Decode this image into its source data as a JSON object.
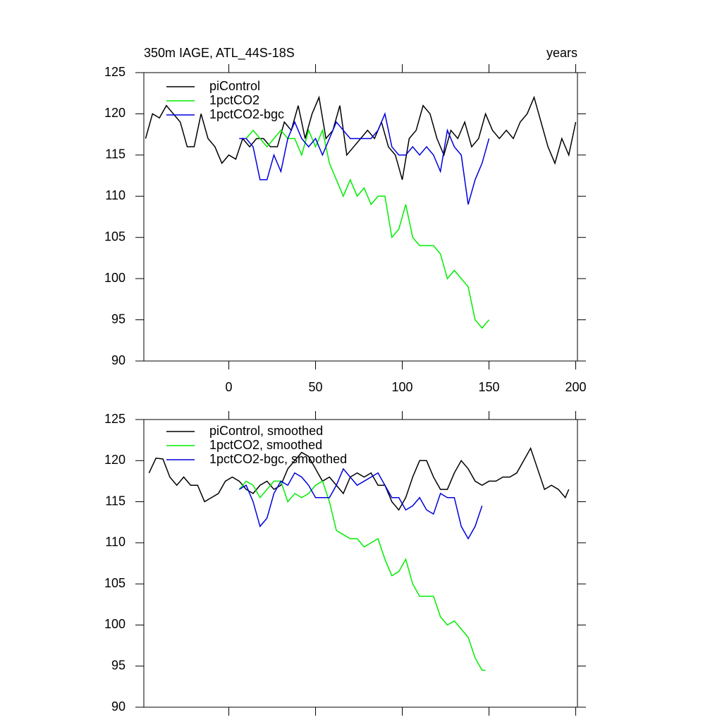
{
  "chart_data": [
    {
      "type": "line",
      "title": "350m IAGE, ATL_44S-18S",
      "subtitle": "years",
      "xlim": [
        -49,
        201
      ],
      "xticks": [
        0,
        50,
        100,
        150,
        200
      ],
      "ylim": [
        90,
        125
      ],
      "yticks": [
        90,
        95,
        100,
        105,
        110,
        115,
        120,
        125
      ],
      "series": [
        {
          "name": "piControl",
          "color": "#000000",
          "x": [
            -48,
            -44,
            -40,
            -36,
            -32,
            -28,
            -24,
            -20,
            -16,
            -12,
            -8,
            -4,
            0,
            4,
            8,
            12,
            16,
            20,
            24,
            28,
            32,
            36,
            40,
            44,
            48,
            52,
            56,
            60,
            64,
            68,
            72,
            76,
            80,
            84,
            88,
            92,
            96,
            100,
            104,
            108,
            112,
            116,
            120,
            124,
            128,
            132,
            136,
            140,
            144,
            148,
            152,
            156,
            160,
            164,
            168,
            172,
            176,
            180,
            184,
            188,
            192,
            196,
            200
          ],
          "values": [
            117,
            120,
            119.5,
            121,
            120,
            119,
            116,
            116,
            120,
            117,
            116,
            114,
            115,
            114.5,
            117,
            116,
            117,
            117,
            116,
            116,
            119,
            118,
            121,
            117,
            120,
            122,
            117,
            118,
            121,
            115,
            116,
            117,
            118,
            117,
            119,
            116,
            115,
            112,
            117,
            118,
            121,
            120,
            117,
            115,
            118,
            117,
            119,
            116,
            117,
            120,
            118,
            117,
            118,
            117,
            119,
            120,
            122,
            119,
            116,
            114,
            117,
            115,
            119
          ]
        },
        {
          "name": "1pctCO2",
          "color": "#00ee00",
          "x": [
            10,
            14,
            18,
            22,
            26,
            30,
            34,
            38,
            42,
            46,
            50,
            54,
            58,
            62,
            66,
            70,
            74,
            78,
            82,
            86,
            90,
            94,
            98,
            102,
            106,
            110,
            114,
            118,
            122,
            126,
            130,
            134,
            138,
            142,
            146,
            150
          ],
          "values": [
            117,
            118,
            117,
            116,
            117,
            118,
            117,
            117,
            115,
            118,
            116,
            118,
            114,
            112,
            110,
            112,
            110,
            111,
            109,
            110,
            110,
            105,
            106,
            109,
            105,
            104,
            104,
            104,
            103,
            100,
            101,
            100,
            99,
            95,
            94,
            95
          ]
        },
        {
          "name": "1pctCO2-bgc",
          "color": "#0000dd",
          "x": [
            6,
            10,
            14,
            18,
            22,
            26,
            30,
            34,
            38,
            42,
            46,
            50,
            54,
            58,
            62,
            66,
            70,
            74,
            78,
            82,
            86,
            90,
            94,
            98,
            102,
            106,
            110,
            114,
            118,
            122,
            126,
            130,
            134,
            138,
            142,
            146,
            150
          ],
          "values": [
            117,
            117,
            116,
            112,
            112,
            115,
            113,
            117,
            119,
            117,
            116,
            117,
            115,
            117,
            119,
            118,
            117,
            117,
            117,
            117,
            118,
            120,
            116,
            115,
            115,
            116,
            115,
            116,
            115,
            113,
            118,
            116,
            115,
            109,
            112,
            114,
            117
          ]
        }
      ]
    },
    {
      "type": "line",
      "xlim": [
        -49,
        201
      ],
      "xticks": [
        0,
        50,
        100,
        150,
        200
      ],
      "ylim": [
        90,
        125
      ],
      "yticks": [
        90,
        95,
        100,
        105,
        110,
        115,
        120,
        125
      ],
      "series": [
        {
          "name": "piControl, smoothed",
          "color": "#000000",
          "x": [
            -46,
            -42,
            -38,
            -34,
            -30,
            -26,
            -22,
            -18,
            -14,
            -10,
            -6,
            -2,
            2,
            6,
            10,
            14,
            18,
            22,
            26,
            30,
            34,
            38,
            42,
            46,
            50,
            54,
            58,
            62,
            66,
            70,
            74,
            78,
            82,
            86,
            90,
            94,
            98,
            102,
            106,
            110,
            114,
            118,
            122,
            126,
            130,
            134,
            138,
            142,
            146,
            150,
            154,
            158,
            162,
            166,
            170,
            174,
            178,
            182,
            186,
            190,
            194,
            196
          ],
          "values": [
            118.5,
            120.3,
            120.2,
            118,
            117,
            118,
            117,
            117,
            115,
            115.5,
            116,
            117.5,
            118,
            117.5,
            116.5,
            116,
            117,
            117.5,
            116.5,
            117,
            119,
            120,
            121,
            120.5,
            119,
            117.5,
            118,
            117,
            116,
            118,
            118.5,
            118,
            118.5,
            117,
            117,
            115,
            114,
            115.5,
            118,
            120,
            120,
            118,
            116.5,
            116.5,
            118.5,
            120,
            119,
            117.5,
            117,
            117.5,
            117.5,
            118,
            118,
            118.5,
            120,
            121.5,
            119,
            116.5,
            117,
            116.5,
            115.5,
            116.5
          ]
        },
        {
          "name": "1pctCO2, smoothed",
          "color": "#00ee00",
          "x": [
            6,
            10,
            14,
            18,
            22,
            26,
            30,
            34,
            38,
            42,
            46,
            50,
            54,
            58,
            62,
            66,
            70,
            74,
            78,
            82,
            86,
            90,
            94,
            98,
            102,
            106,
            110,
            114,
            118,
            122,
            126,
            130,
            134,
            138,
            142,
            146,
            148
          ],
          "values": [
            116.5,
            117.5,
            117,
            115.5,
            116.5,
            117.5,
            117.5,
            115,
            116,
            115.5,
            116,
            117,
            117.5,
            115,
            111.5,
            111,
            110.5,
            110.5,
            109.5,
            110,
            110.5,
            108,
            106,
            106.5,
            108,
            105,
            103.5,
            103.5,
            103.5,
            101,
            100,
            100.5,
            99.5,
            98.5,
            96,
            94.5,
            94.5
          ]
        },
        {
          "name": "1pctCO2-bgc, smoothed",
          "color": "#0000dd",
          "x": [
            6,
            10,
            14,
            18,
            22,
            26,
            30,
            34,
            38,
            42,
            46,
            50,
            54,
            58,
            62,
            66,
            70,
            74,
            78,
            82,
            86,
            90,
            94,
            98,
            102,
            106,
            110,
            114,
            118,
            122,
            126,
            130,
            134,
            138,
            142,
            146
          ],
          "values": [
            116.5,
            117,
            115,
            112,
            113,
            116,
            117.5,
            117,
            118.5,
            118,
            117,
            115.5,
            115.5,
            115.5,
            117,
            119,
            118,
            117,
            117.5,
            118,
            118.5,
            117,
            115.5,
            115.5,
            114,
            114.5,
            115.5,
            114,
            113.5,
            116,
            115.5,
            115.5,
            112,
            110.5,
            112,
            114.5
          ]
        }
      ]
    }
  ]
}
